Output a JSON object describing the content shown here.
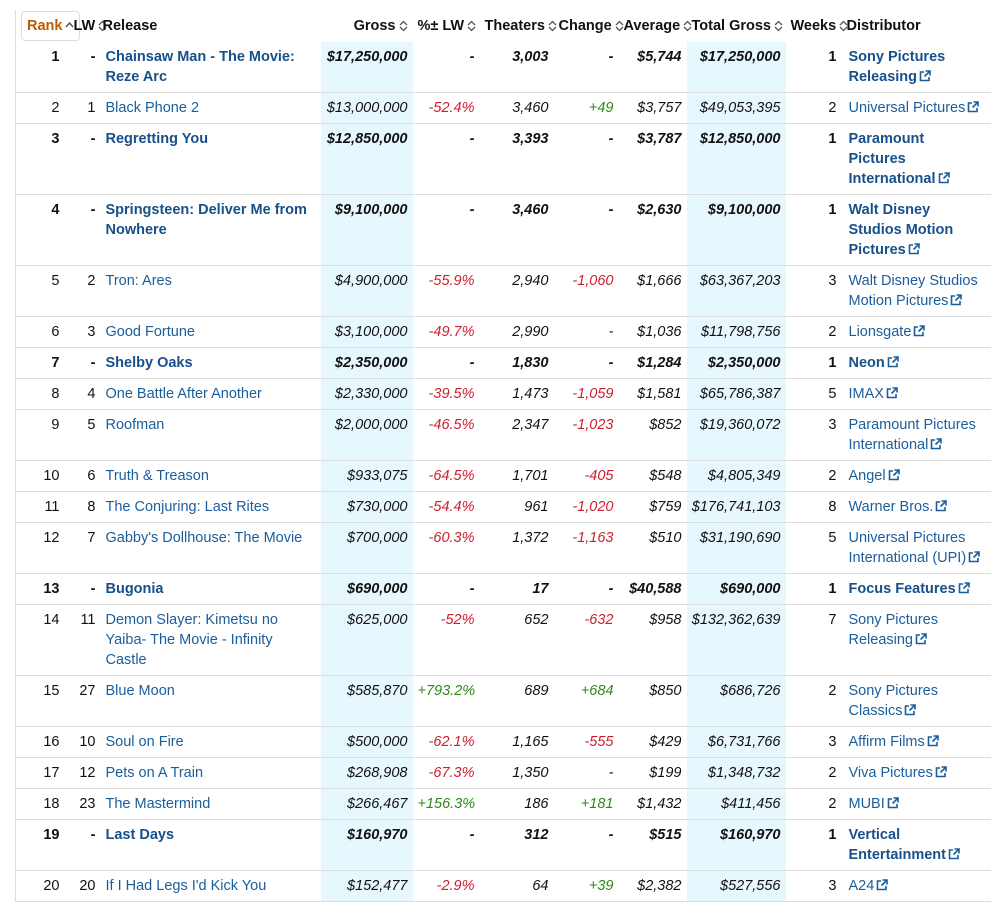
{
  "table": {
    "headers": [
      "Rank",
      "LW",
      "Release",
      "Gross",
      "%± LW",
      "Theaters",
      "Change",
      "Average",
      "Total Gross",
      "Weeks",
      "Distributor"
    ],
    "rows": [
      [
        "1",
        "-",
        "Chainsaw Man - The Movie: Reze Arc",
        "$17,250,000",
        "-",
        "3,003",
        "-",
        "$5,744",
        "$17,250,000",
        "1",
        "Sony Pictures Releasing"
      ],
      [
        "2",
        "1",
        "Black Phone 2",
        "$13,000,000",
        "-52.4%",
        "3,460",
        "+49",
        "$3,757",
        "$49,053,395",
        "2",
        "Universal Pictures"
      ],
      [
        "3",
        "-",
        "Regretting You",
        "$12,850,000",
        "-",
        "3,393",
        "-",
        "$3,787",
        "$12,850,000",
        "1",
        "Paramount Pictures International"
      ],
      [
        "4",
        "-",
        "Springsteen: Deliver Me from Nowhere",
        "$9,100,000",
        "-",
        "3,460",
        "-",
        "$2,630",
        "$9,100,000",
        "1",
        "Walt Disney Studios Motion Pictures"
      ],
      [
        "5",
        "2",
        "Tron: Ares",
        "$4,900,000",
        "-55.9%",
        "2,940",
        "-1,060",
        "$1,666",
        "$63,367,203",
        "3",
        "Walt Disney Studios Motion Pictures"
      ],
      [
        "6",
        "3",
        "Good Fortune",
        "$3,100,000",
        "-49.7%",
        "2,990",
        "-",
        "$1,036",
        "$11,798,756",
        "2",
        "Lionsgate"
      ],
      [
        "7",
        "-",
        "Shelby Oaks",
        "$2,350,000",
        "-",
        "1,830",
        "-",
        "$1,284",
        "$2,350,000",
        "1",
        "Neon"
      ],
      [
        "8",
        "4",
        "One Battle After Another",
        "$2,330,000",
        "-39.5%",
        "1,473",
        "-1,059",
        "$1,581",
        "$65,786,387",
        "5",
        "IMAX"
      ],
      [
        "9",
        "5",
        "Roofman",
        "$2,000,000",
        "-46.5%",
        "2,347",
        "-1,023",
        "$852",
        "$19,360,072",
        "3",
        "Paramount Pictures International"
      ],
      [
        "10",
        "6",
        "Truth & Treason",
        "$933,075",
        "-64.5%",
        "1,701",
        "-405",
        "$548",
        "$4,805,349",
        "2",
        "Angel"
      ],
      [
        "11",
        "8",
        "The Conjuring: Last Rites",
        "$730,000",
        "-54.4%",
        "961",
        "-1,020",
        "$759",
        "$176,741,103",
        "8",
        "Warner Bros."
      ],
      [
        "12",
        "7",
        "Gabby's Dollhouse: The Movie",
        "$700,000",
        "-60.3%",
        "1,372",
        "-1,163",
        "$510",
        "$31,190,690",
        "5",
        "Universal Pictures International (UPI)"
      ],
      [
        "13",
        "-",
        "Bugonia",
        "$690,000",
        "-",
        "17",
        "-",
        "$40,588",
        "$690,000",
        "1",
        "Focus Features"
      ],
      [
        "14",
        "11",
        "Demon Slayer: Kimetsu no Yaiba- The Movie - Infinity Castle",
        "$625,000",
        "-52%",
        "652",
        "-632",
        "$958",
        "$132,362,639",
        "7",
        "Sony Pictures Releasing"
      ],
      [
        "15",
        "27",
        "Blue Moon",
        "$585,870",
        "+793.2%",
        "689",
        "+684",
        "$850",
        "$686,726",
        "2",
        "Sony Pictures Classics"
      ],
      [
        "16",
        "10",
        "Soul on Fire",
        "$500,000",
        "-62.1%",
        "1,165",
        "-555",
        "$429",
        "$6,731,766",
        "3",
        "Affirm Films"
      ],
      [
        "17",
        "12",
        "Pets on A Train",
        "$268,908",
        "-67.3%",
        "1,350",
        "-",
        "$199",
        "$1,348,732",
        "2",
        "Viva Pictures"
      ],
      [
        "18",
        "23",
        "The Mastermind",
        "$266,467",
        "+156.3%",
        "186",
        "+181",
        "$1,432",
        "$411,456",
        "2",
        "MUBI"
      ],
      [
        "19",
        "-",
        "Last Days",
        "$160,970",
        "-",
        "312",
        "-",
        "$515",
        "$160,970",
        "1",
        "Vertical Entertainment"
      ],
      [
        "20",
        "20",
        "If I Had Legs I'd Kick You",
        "$152,477",
        "-2.9%",
        "64",
        "+39",
        "$2,382",
        "$527,556",
        "3",
        "A24"
      ]
    ]
  }
}
